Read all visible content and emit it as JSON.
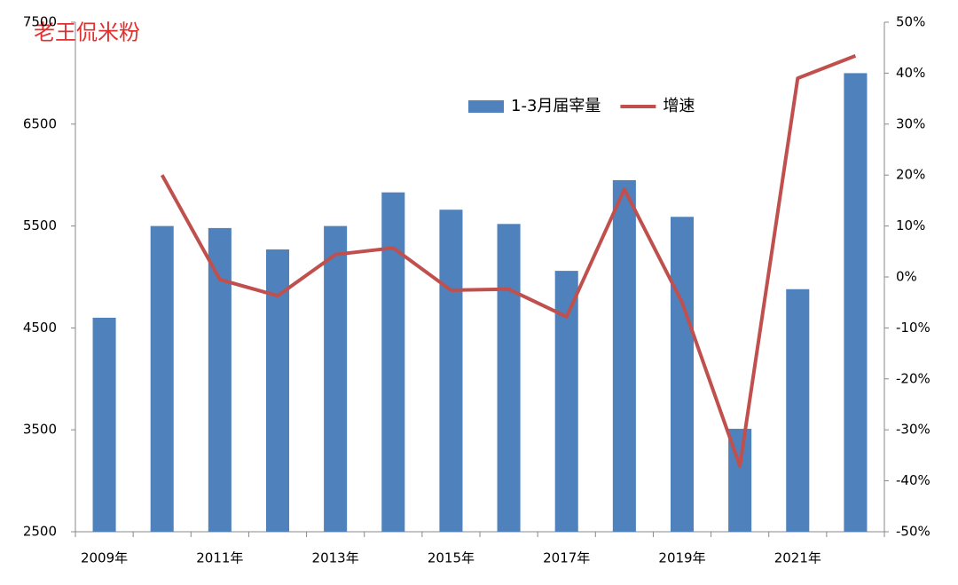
{
  "chart_data": {
    "type": "bar-line",
    "watermark": "老王侃米粉",
    "categories": [
      "2009年",
      null,
      "2011年",
      null,
      "2013年",
      null,
      "2015年",
      null,
      "2017年",
      null,
      "2019年",
      null,
      "2021年",
      null
    ],
    "series": [
      {
        "name": "1-3月届宰量",
        "type": "bar",
        "color": "#4f81bd",
        "values": [
          4600,
          5500,
          5480,
          5270,
          5500,
          5830,
          5660,
          5520,
          5060,
          5950,
          5590,
          3510,
          4880,
          7000
        ]
      },
      {
        "name": "增速",
        "type": "line",
        "axis": "y2",
        "color": "#c0504d",
        "values": [
          null,
          20,
          -0.5,
          -3.7,
          4.4,
          5.7,
          -2.6,
          -2.4,
          -7.8,
          17.2,
          -5,
          -37.1,
          39,
          43.4
        ]
      }
    ],
    "ylim": [
      2500,
      7500
    ],
    "yticks": [
      2500,
      3500,
      4500,
      5500,
      6500,
      7500
    ],
    "y2lim": [
      -50,
      50
    ],
    "y2ticks": [
      {
        "value": -50,
        "label": "-50%"
      },
      {
        "value": -40,
        "label": "-40%"
      },
      {
        "value": -30,
        "label": "-30%"
      },
      {
        "value": -20,
        "label": "-20%"
      },
      {
        "value": -10,
        "label": "-10%"
      },
      {
        "value": 0,
        "label": "0%"
      },
      {
        "value": 10,
        "label": "10%"
      },
      {
        "value": 20,
        "label": "20%"
      },
      {
        "value": 30,
        "label": "30%"
      },
      {
        "value": 40,
        "label": "40%"
      },
      {
        "value": 50,
        "label": "50%"
      }
    ],
    "grid": false,
    "legend": "top"
  }
}
